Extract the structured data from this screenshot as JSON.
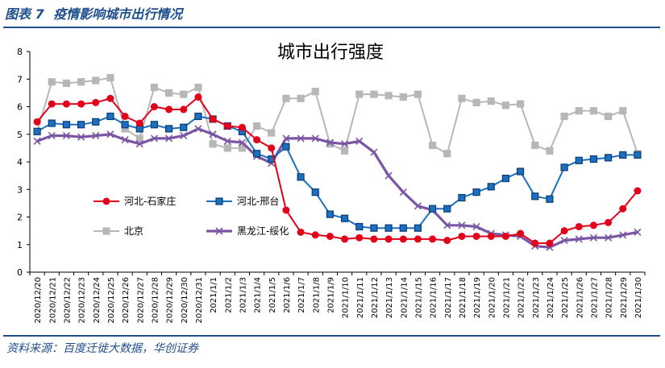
{
  "header": {
    "figure_no": "图表 7",
    "title": "疫情影响城市出行情况"
  },
  "footer": {
    "source": "资料来源：百度迁徙大数据，华创证券"
  },
  "chart_data": {
    "type": "line",
    "title": "城市出行强度",
    "xlabel": "",
    "ylabel": "",
    "ylim": [
      0,
      8
    ],
    "yticks": [
      0,
      1,
      2,
      3,
      4,
      5,
      6,
      7,
      8
    ],
    "legend_position": "middle-left",
    "categories": [
      "2020/12/20",
      "2020/12/21",
      "2020/12/22",
      "2020/12/23",
      "2020/12/24",
      "2020/12/25",
      "2020/12/26",
      "2020/12/27",
      "2020/12/28",
      "2020/12/29",
      "2020/12/30",
      "2020/12/31",
      "2021/1/1",
      "2021/1/2",
      "2021/1/3",
      "2021/1/4",
      "2021/1/5",
      "2021/1/6",
      "2021/1/7",
      "2021/1/8",
      "2021/1/9",
      "2021/1/10",
      "2021/1/11",
      "2021/1/12",
      "2021/1/13",
      "2021/1/14",
      "2021/1/15",
      "2021/1/16",
      "2021/1/17",
      "2021/1/18",
      "2021/1/19",
      "2021/1/20",
      "2021/1/21",
      "2021/1/22",
      "2021/1/23",
      "2021/1/24",
      "2021/1/25",
      "2021/1/26",
      "2021/1/27",
      "2021/1/28",
      "2021/1/29",
      "2021/1/30"
    ],
    "series": [
      {
        "name": "河北-石家庄",
        "color": "#e3001b",
        "marker": "circle",
        "values": [
          5.45,
          6.1,
          6.1,
          6.1,
          6.15,
          6.3,
          5.65,
          5.4,
          6.0,
          5.9,
          5.9,
          6.35,
          5.55,
          5.3,
          5.25,
          4.8,
          4.5,
          2.25,
          1.45,
          1.35,
          1.3,
          1.2,
          1.25,
          1.2,
          1.2,
          1.2,
          1.2,
          1.2,
          1.15,
          1.3,
          1.3,
          1.3,
          1.3,
          1.4,
          1.05,
          1.05,
          1.5,
          1.65,
          1.7,
          1.8,
          2.3,
          2.95
        ]
      },
      {
        "name": "河北-邢台",
        "color": "#1c6fbf",
        "marker": "square",
        "values": [
          5.1,
          5.4,
          5.35,
          5.35,
          5.45,
          5.65,
          5.35,
          5.2,
          5.35,
          5.2,
          5.25,
          5.65,
          5.55,
          5.3,
          5.1,
          4.3,
          4.1,
          4.55,
          3.45,
          2.9,
          2.1,
          1.95,
          1.65,
          1.6,
          1.6,
          1.6,
          1.6,
          2.3,
          2.3,
          2.7,
          2.9,
          3.1,
          3.4,
          3.65,
          2.75,
          2.65,
          3.8,
          4.05,
          4.1,
          4.15,
          4.25,
          4.25
        ]
      },
      {
        "name": "北京",
        "color": "#b7b7b7",
        "marker": "square",
        "values": [
          5.1,
          6.9,
          6.85,
          6.9,
          6.95,
          7.05,
          5.2,
          4.85,
          6.7,
          6.5,
          6.45,
          6.7,
          4.65,
          4.5,
          4.5,
          5.3,
          5.05,
          6.3,
          6.3,
          6.55,
          4.65,
          4.4,
          6.45,
          6.45,
          6.4,
          6.35,
          6.45,
          4.6,
          4.3,
          6.3,
          6.15,
          6.2,
          6.05,
          6.1,
          4.6,
          4.4,
          5.65,
          5.85,
          5.85,
          5.65,
          5.85,
          4.3
        ]
      },
      {
        "name": "黑龙江-绥化",
        "color": "#7a55a6",
        "marker": "cross",
        "values": [
          4.75,
          4.95,
          4.95,
          4.9,
          4.95,
          5.0,
          4.8,
          4.65,
          4.85,
          4.85,
          4.95,
          5.2,
          5.0,
          4.75,
          4.7,
          4.2,
          3.95,
          4.85,
          4.85,
          4.85,
          4.7,
          4.65,
          4.75,
          4.35,
          3.5,
          2.9,
          2.4,
          2.25,
          1.7,
          1.7,
          1.65,
          1.4,
          1.35,
          1.3,
          0.95,
          0.9,
          1.15,
          1.2,
          1.25,
          1.25,
          1.35,
          1.45
        ]
      }
    ]
  }
}
